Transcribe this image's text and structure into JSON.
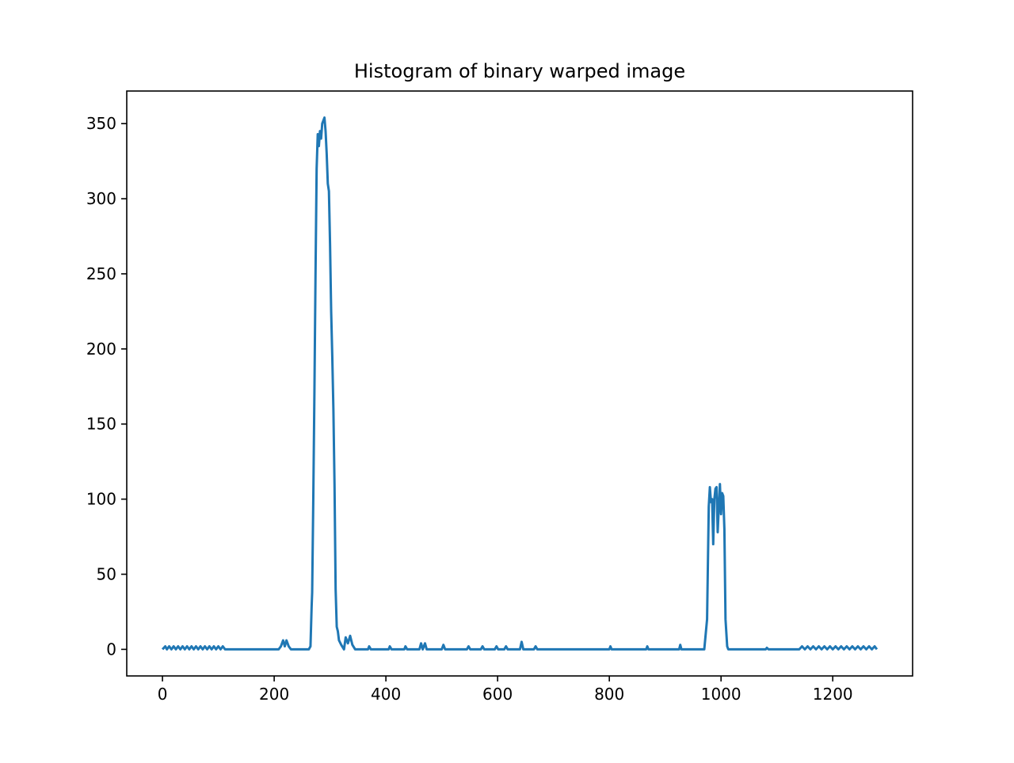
{
  "chart_data": {
    "type": "line",
    "title": "Histogram of binary warped image",
    "color": "#1f77b4",
    "x": [
      0,
      5,
      8,
      12,
      16,
      20,
      24,
      28,
      32,
      36,
      40,
      44,
      48,
      52,
      56,
      60,
      64,
      68,
      72,
      76,
      80,
      84,
      88,
      92,
      96,
      100,
      104,
      108,
      112,
      208,
      212,
      216,
      219,
      222,
      226,
      230,
      262,
      265,
      267,
      268,
      270,
      272,
      274,
      276,
      278,
      280,
      282,
      284,
      286,
      288,
      290,
      292,
      294,
      296,
      298,
      300,
      302,
      304,
      306,
      308,
      310,
      312,
      314,
      316,
      320,
      325,
      328,
      332,
      336,
      340,
      345,
      368,
      370,
      373,
      405,
      407,
      410,
      433,
      435,
      438,
      460,
      463,
      466,
      470,
      473,
      500,
      503,
      506,
      545,
      548,
      551,
      570,
      573,
      576,
      595,
      598,
      601,
      612,
      615,
      618,
      640,
      643,
      646,
      665,
      668,
      671,
      800,
      802,
      804,
      866,
      868,
      870,
      925,
      927,
      929,
      970,
      975,
      978,
      980,
      982,
      984,
      986,
      988,
      990,
      992,
      994,
      996,
      998,
      1000,
      1002,
      1004,
      1006,
      1008,
      1011,
      1013,
      1080,
      1082,
      1085,
      1140,
      1145,
      1150,
      1155,
      1160,
      1165,
      1170,
      1175,
      1180,
      1185,
      1190,
      1195,
      1200,
      1205,
      1210,
      1215,
      1220,
      1225,
      1230,
      1235,
      1240,
      1245,
      1250,
      1255,
      1260,
      1265,
      1270,
      1275,
      1279
    ],
    "values": [
      0,
      2,
      0,
      2,
      0,
      2,
      0,
      2,
      0,
      2,
      0,
      2,
      0,
      2,
      0,
      2,
      0,
      2,
      0,
      2,
      0,
      2,
      0,
      2,
      0,
      2,
      0,
      2,
      0,
      0,
      2,
      6,
      2,
      6,
      2,
      0,
      0,
      2,
      28,
      38,
      100,
      170,
      250,
      320,
      343,
      335,
      345,
      340,
      350,
      352,
      354,
      345,
      330,
      310,
      305,
      270,
      225,
      195,
      160,
      110,
      40,
      15,
      12,
      6,
      3,
      0,
      8,
      4,
      9,
      3,
      0,
      0,
      2,
      0,
      0,
      2,
      0,
      0,
      2,
      0,
      0,
      4,
      0,
      4,
      0,
      0,
      3,
      0,
      0,
      2,
      0,
      0,
      2,
      0,
      0,
      2,
      0,
      0,
      2,
      0,
      0,
      5,
      0,
      0,
      2,
      0,
      0,
      2,
      0,
      0,
      2,
      0,
      0,
      3,
      0,
      0,
      20,
      95,
      108,
      98,
      100,
      70,
      100,
      107,
      108,
      78,
      95,
      110,
      90,
      104,
      102,
      80,
      20,
      2,
      0,
      0,
      1,
      0,
      0,
      2,
      0,
      2,
      0,
      2,
      0,
      2,
      0,
      2,
      0,
      2,
      0,
      2,
      0,
      2,
      0,
      2,
      0,
      2,
      0,
      2,
      0,
      2,
      0,
      2,
      0,
      2,
      0
    ],
    "xlim": [
      -63.95,
      1342.95
    ],
    "ylim": [
      -17.7,
      371.7
    ],
    "xticks": [
      0,
      200,
      400,
      600,
      800,
      1000,
      1200
    ],
    "yticks": [
      0,
      50,
      100,
      150,
      200,
      250,
      300,
      350
    ]
  }
}
